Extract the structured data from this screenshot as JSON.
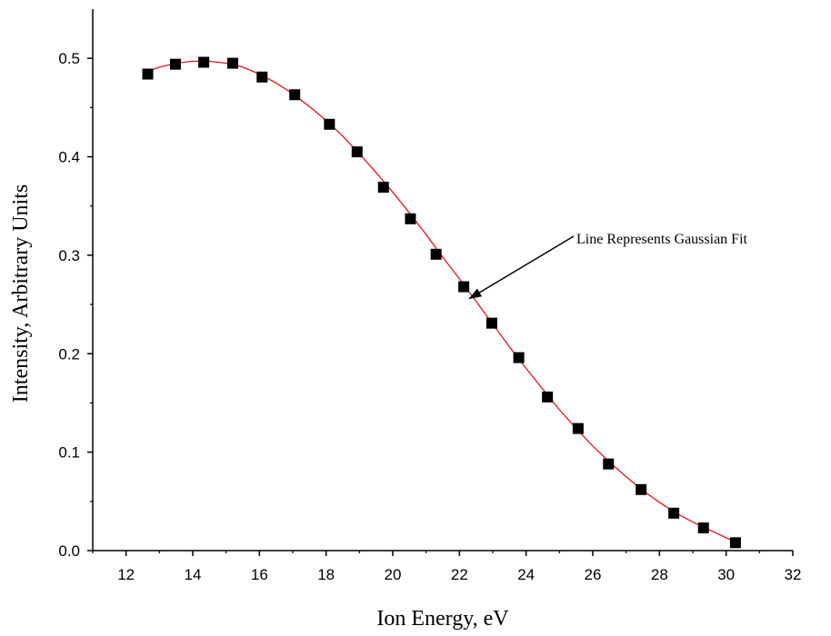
{
  "chart_data": {
    "type": "scatter",
    "title": "",
    "xlabel": "Ion Energy, eV",
    "ylabel": "Intensity, Arbitrary Units",
    "xlim": [
      11,
      32
    ],
    "ylim": [
      0,
      0.55
    ],
    "x_ticks": [
      12,
      14,
      16,
      18,
      20,
      22,
      24,
      26,
      28,
      30,
      32
    ],
    "x_tick_labels": [
      "12",
      "14",
      "16",
      "18",
      "20",
      "22",
      "24",
      "26",
      "28",
      "30",
      "32"
    ],
    "y_ticks": [
      0.0,
      0.1,
      0.2,
      0.3,
      0.4,
      0.5
    ],
    "y_tick_labels": [
      "0.0",
      "0.1",
      "0.2",
      "0.3",
      "0.4",
      "0.5"
    ],
    "grid": false,
    "legend": "none",
    "series": [
      {
        "kind": "markers",
        "marker": "square",
        "color": "#000000",
        "x": [
          12.65,
          13.48,
          14.33,
          15.2,
          16.08,
          17.06,
          18.1,
          18.93,
          19.72,
          20.53,
          21.3,
          22.13,
          22.97,
          23.78,
          24.64,
          25.56,
          26.47,
          27.45,
          28.43,
          29.32,
          30.28
        ],
        "y": [
          0.484,
          0.494,
          0.496,
          0.495,
          0.481,
          0.463,
          0.433,
          0.405,
          0.369,
          0.337,
          0.301,
          0.268,
          0.231,
          0.196,
          0.156,
          0.124,
          0.088,
          0.062,
          0.038,
          0.023,
          0.008
        ]
      },
      {
        "kind": "line",
        "color": "#e8141e",
        "description_type": "gaussian",
        "x": [
          12.6,
          13.0,
          13.5,
          14.0,
          14.5,
          15.0,
          15.5,
          16.0,
          16.5,
          17.0,
          17.5,
          18.0,
          18.5,
          19.0,
          19.5,
          20.0,
          20.5,
          21.0,
          21.5,
          22.0,
          22.5,
          23.0,
          23.5,
          24.0,
          24.5,
          25.0,
          25.5,
          26.0,
          26.5,
          27.0,
          27.5,
          28.0,
          28.5,
          29.0,
          29.5,
          30.0,
          30.3
        ],
        "y": [
          0.486,
          0.491,
          0.495,
          0.497,
          0.497,
          0.495,
          0.491,
          0.484,
          0.475,
          0.464,
          0.451,
          0.437,
          0.421,
          0.403,
          0.384,
          0.364,
          0.343,
          0.321,
          0.298,
          0.276,
          0.253,
          0.23,
          0.207,
          0.185,
          0.164,
          0.143,
          0.124,
          0.106,
          0.09,
          0.075,
          0.061,
          0.049,
          0.038,
          0.029,
          0.021,
          0.013,
          0.009
        ]
      }
    ],
    "annotations": [
      {
        "text": "Line Represents Gaussian Fit",
        "arrow_to": [
          22.3,
          0.256
        ]
      }
    ]
  }
}
